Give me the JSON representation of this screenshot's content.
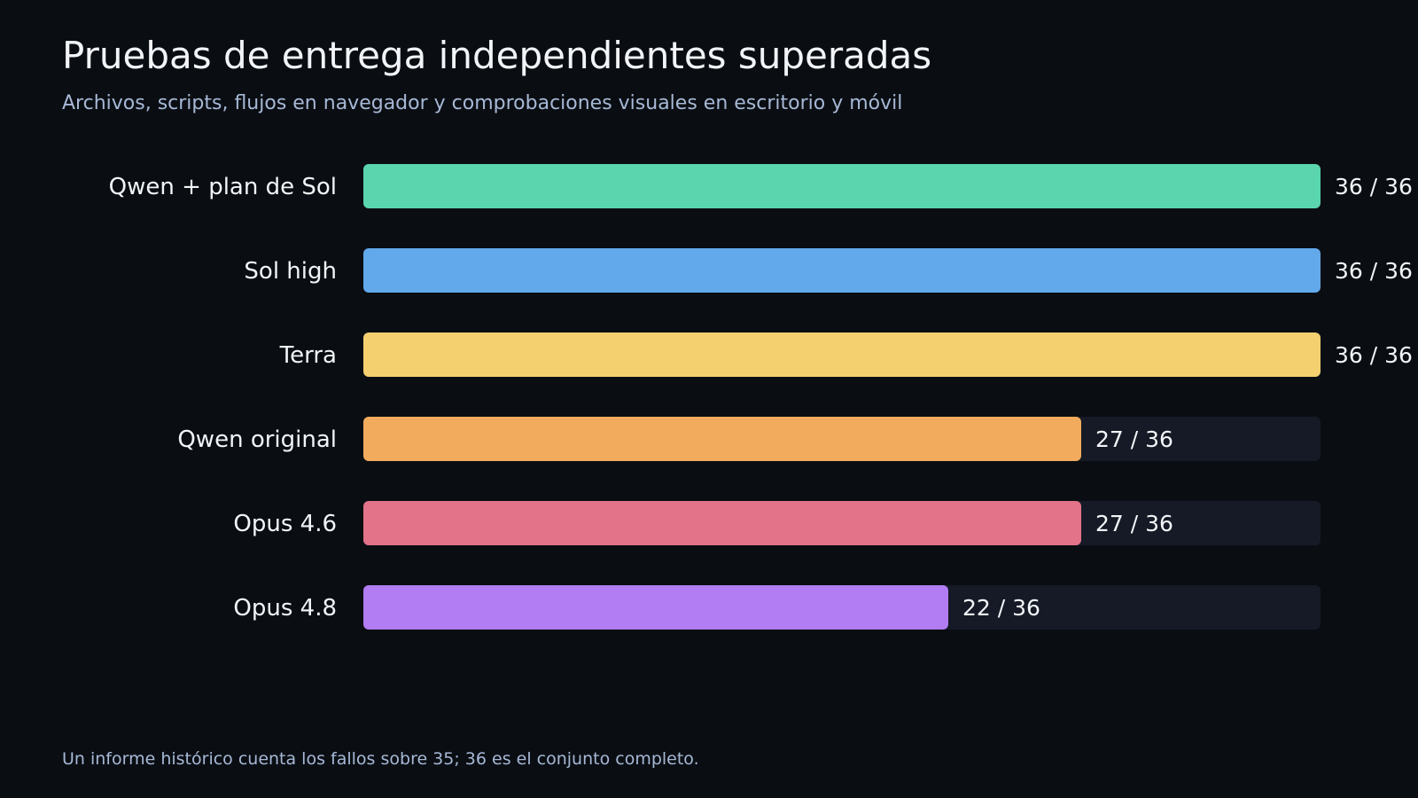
{
  "header": {
    "title": "Pruebas de entrega independientes superadas",
    "subtitle": "Archivos, scripts, flujos en navegador y comprobaciones visuales en escritorio y móvil"
  },
  "footer": {
    "note": "Un informe histórico cuenta los fallos sobre 35; 36 es el conjunto completo."
  },
  "chart_data": {
    "type": "bar",
    "orientation": "horizontal",
    "title": "Pruebas de entrega independientes superadas",
    "subtitle": "Archivos, scripts, flujos en navegador y comprobaciones visuales en escritorio y móvil",
    "categories": [
      "Qwen + plan de Sol",
      "Sol high",
      "Terra",
      "Qwen original",
      "Opus 4.6",
      "Opus 4.8"
    ],
    "values": [
      36,
      36,
      36,
      27,
      27,
      22
    ],
    "total": 36,
    "value_labels": [
      "36 / 36",
      "36 / 36",
      "36 / 36",
      "27 / 36",
      "27 / 36",
      "22 / 36"
    ],
    "colors": [
      "#5ad5ad",
      "#62a9ec",
      "#f4d06f",
      "#f2ab5d",
      "#e27389",
      "#b27cf2"
    ],
    "track_color": "#151a26",
    "xlim": [
      0,
      36
    ],
    "grid": false,
    "legend": "none"
  }
}
